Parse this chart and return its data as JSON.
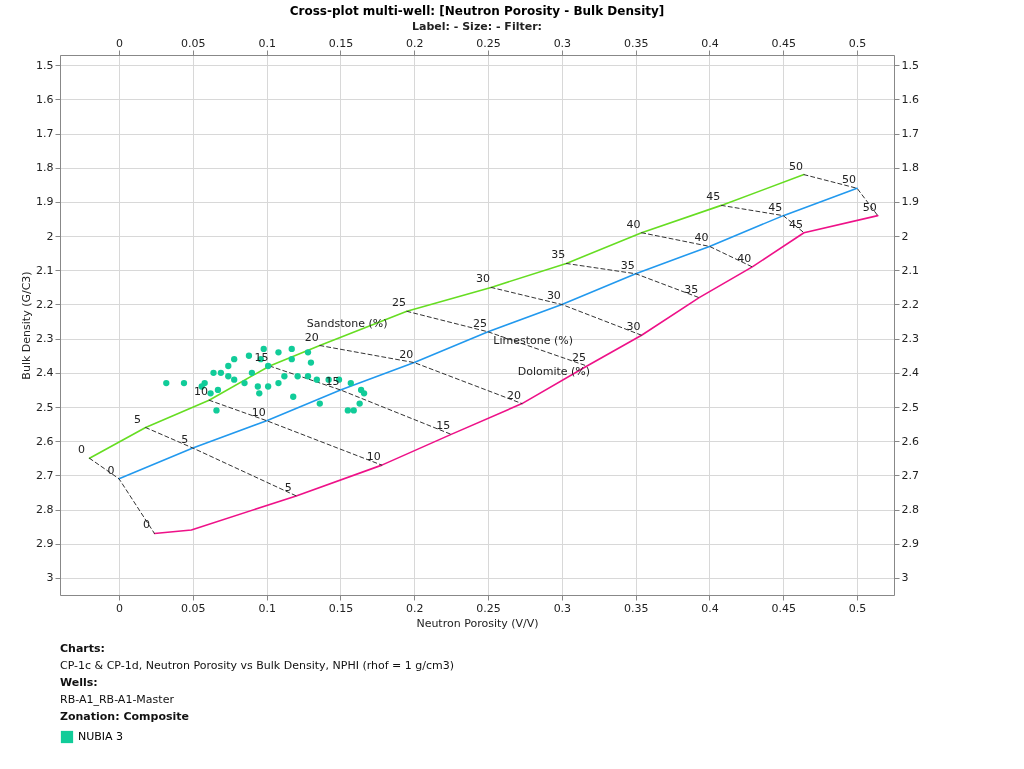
{
  "chart_data": {
    "type": "scatter",
    "title": "Cross-plot multi-well: [Neutron Porosity - Bulk Density]",
    "subtitle": "Label:   -   Size:   -   Filter:",
    "xlabel": "Neutron Porosity (V/V)",
    "ylabel": "Bulk Density (G/C3)",
    "xlim": [
      -0.04,
      0.525
    ],
    "xticks": [
      0,
      0.05,
      0.1,
      0.15,
      0.2,
      0.25,
      0.3,
      0.35,
      0.4,
      0.45,
      0.5
    ],
    "x2lim": [
      -0.04,
      0.525
    ],
    "x2ticks": [
      0,
      0.05,
      0.1,
      0.15,
      0.2,
      0.25,
      0.3,
      0.35,
      0.4,
      0.45,
      0.5
    ],
    "ylim": [
      3.05,
      1.47
    ],
    "yticks": [
      1.5,
      1.6,
      1.7,
      1.8,
      1.9,
      2,
      2.1,
      2.2,
      2.3,
      2.4,
      2.5,
      2.6,
      2.7,
      2.8,
      2.9,
      3
    ],
    "y2lim": [
      3.05,
      1.47
    ],
    "y2ticks": [
      1.5,
      1.6,
      1.7,
      1.8,
      1.9,
      2,
      2.1,
      2.2,
      2.3,
      2.4,
      2.5,
      2.6,
      2.7,
      2.8,
      2.9,
      3
    ],
    "grid": true,
    "legend": "bottom left",
    "series": [
      {
        "type": "line",
        "color": "#66dd22",
        "x": [
          -0.02,
          0.018,
          0.061,
          0.102,
          0.136,
          0.195,
          0.252,
          0.303,
          0.354,
          0.408,
          0.464
        ],
        "values": [
          2.65,
          2.56,
          2.48,
          2.38,
          2.32,
          2.22,
          2.15,
          2.08,
          1.99,
          1.91,
          1.82
        ]
      },
      {
        "type": "line",
        "color": "#2299ee",
        "x": [
          0,
          0.05,
          0.1,
          0.15,
          0.2,
          0.25,
          0.3,
          0.35,
          0.4,
          0.45,
          0.5
        ],
        "values": [
          2.71,
          2.62,
          2.54,
          2.45,
          2.37,
          2.28,
          2.2,
          2.11,
          2.03,
          1.94,
          1.86
        ]
      },
      {
        "type": "line",
        "color": "#ee1188",
        "x": [
          0.024,
          0.049,
          0.12,
          0.178,
          0.225,
          0.273,
          0.317,
          0.354,
          0.393,
          0.429,
          0.464,
          0.514
        ],
        "values": [
          2.87,
          2.86,
          2.76,
          2.67,
          2.58,
          2.49,
          2.38,
          2.29,
          2.18,
          2.09,
          1.99,
          1.94
        ]
      },
      {
        "type": "line",
        "line_style": "dashed",
        "color": "#333333",
        "x": [
          -0.02,
          0,
          0.024
        ],
        "values": [
          2.65,
          2.71,
          2.87
        ]
      },
      {
        "type": "line",
        "line_style": "dashed",
        "color": "#333333",
        "x": [
          0.018,
          0.05,
          0.12
        ],
        "values": [
          2.56,
          2.62,
          2.76
        ]
      },
      {
        "type": "line",
        "line_style": "dashed",
        "color": "#333333",
        "x": [
          0.061,
          0.1,
          0.178
        ],
        "values": [
          2.48,
          2.54,
          2.67
        ]
      },
      {
        "type": "line",
        "line_style": "dashed",
        "color": "#333333",
        "x": [
          0.102,
          0.15,
          0.225
        ],
        "values": [
          2.38,
          2.45,
          2.58
        ]
      },
      {
        "type": "line",
        "line_style": "dashed",
        "color": "#333333",
        "x": [
          0.136,
          0.2,
          0.273
        ],
        "values": [
          2.32,
          2.37,
          2.49
        ]
      },
      {
        "type": "line",
        "line_style": "dashed",
        "color": "#333333",
        "x": [
          0.195,
          0.25,
          0.317
        ],
        "values": [
          2.22,
          2.28,
          2.38
        ]
      },
      {
        "type": "line",
        "line_style": "dashed",
        "color": "#333333",
        "x": [
          0.252,
          0.3,
          0.354
        ],
        "values": [
          2.15,
          2.2,
          2.29
        ]
      },
      {
        "type": "line",
        "line_style": "dashed",
        "color": "#333333",
        "x": [
          0.303,
          0.35,
          0.393
        ],
        "values": [
          2.08,
          2.11,
          2.18
        ]
      },
      {
        "type": "line",
        "line_style": "dashed",
        "color": "#333333",
        "x": [
          0.354,
          0.4,
          0.429
        ],
        "values": [
          1.99,
          2.03,
          2.09
        ]
      },
      {
        "type": "line",
        "line_style": "dashed",
        "color": "#333333",
        "x": [
          0.408,
          0.45,
          0.464
        ],
        "values": [
          1.91,
          1.94,
          1.99
        ]
      },
      {
        "type": "line",
        "line_style": "dashed",
        "color": "#333333",
        "x": [
          0.464,
          0.5,
          0.514
        ],
        "values": [
          1.82,
          1.86,
          1.94
        ]
      },
      {
        "name": "NUBIA 3",
        "color": "#11cc99",
        "marker": "circle",
        "x": [
          0.044,
          0.058,
          0.064,
          0.074,
          0.078,
          0.088,
          0.098,
          0.108,
          0.117,
          0.128,
          0.13,
          0.117,
          0.101,
          0.09,
          0.078,
          0.067,
          0.062,
          0.094,
          0.101,
          0.085,
          0.074,
          0.112,
          0.121,
          0.128,
          0.134,
          0.142,
          0.149,
          0.095,
          0.118,
          0.136,
          0.157,
          0.164,
          0.166,
          0.163,
          0.155,
          0.159,
          0.108,
          0.069,
          0.056,
          0.096,
          0.032,
          0.066
        ],
        "values": [
          2.43,
          2.43,
          2.4,
          2.38,
          2.36,
          2.35,
          2.33,
          2.34,
          2.33,
          2.34,
          2.37,
          2.36,
          2.38,
          2.4,
          2.42,
          2.45,
          2.46,
          2.44,
          2.44,
          2.43,
          2.41,
          2.41,
          2.41,
          2.41,
          2.42,
          2.42,
          2.42,
          2.46,
          2.47,
          2.49,
          2.43,
          2.45,
          2.46,
          2.49,
          2.51,
          2.51,
          2.43,
          2.4,
          2.44,
          2.36,
          2.43,
          2.51
        ]
      }
    ],
    "annotations": [
      {
        "text": "Sandstone (%)",
        "x": 0.16,
        "y": 2.28
      },
      {
        "text": "Limestone (%)",
        "x": 0.286,
        "y": 2.33
      },
      {
        "text": "Dolomite (%)",
        "x": 0.3,
        "y": 2.42
      },
      {
        "text": "0",
        "x": -0.02,
        "y": 2.65
      },
      {
        "text": "5",
        "x": 0.018,
        "y": 2.56
      },
      {
        "text": "10",
        "x": 0.061,
        "y": 2.48
      },
      {
        "text": "15",
        "x": 0.102,
        "y": 2.38
      },
      {
        "text": "20",
        "x": 0.136,
        "y": 2.32
      },
      {
        "text": "25",
        "x": 0.195,
        "y": 2.22
      },
      {
        "text": "30",
        "x": 0.252,
        "y": 2.15
      },
      {
        "text": "35",
        "x": 0.303,
        "y": 2.08
      },
      {
        "text": "40",
        "x": 0.354,
        "y": 1.99
      },
      {
        "text": "45",
        "x": 0.408,
        "y": 1.91
      },
      {
        "text": "50",
        "x": 0.464,
        "y": 1.82
      },
      {
        "text": "0",
        "x": 0,
        "y": 2.71
      },
      {
        "text": "5",
        "x": 0.05,
        "y": 2.62
      },
      {
        "text": "10",
        "x": 0.1,
        "y": 2.54
      },
      {
        "text": "15",
        "x": 0.15,
        "y": 2.45
      },
      {
        "text": "20",
        "x": 0.2,
        "y": 2.37
      },
      {
        "text": "25",
        "x": 0.25,
        "y": 2.28
      },
      {
        "text": "30",
        "x": 0.3,
        "y": 2.2
      },
      {
        "text": "35",
        "x": 0.35,
        "y": 2.11
      },
      {
        "text": "40",
        "x": 0.4,
        "y": 2.03
      },
      {
        "text": "45",
        "x": 0.45,
        "y": 1.94
      },
      {
        "text": "50",
        "x": 0.5,
        "y": 1.86
      },
      {
        "text": "0",
        "x": 0.024,
        "y": 2.87
      },
      {
        "text": "5",
        "x": 0.12,
        "y": 2.76
      },
      {
        "text": "10",
        "x": 0.178,
        "y": 2.67
      },
      {
        "text": "15",
        "x": 0.225,
        "y": 2.58
      },
      {
        "text": "20",
        "x": 0.273,
        "y": 2.49
      },
      {
        "text": "25",
        "x": 0.317,
        "y": 2.38
      },
      {
        "text": "30",
        "x": 0.354,
        "y": 2.29
      },
      {
        "text": "35",
        "x": 0.393,
        "y": 2.18
      },
      {
        "text": "40",
        "x": 0.429,
        "y": 2.09
      },
      {
        "text": "45",
        "x": 0.464,
        "y": 1.99
      },
      {
        "text": "50",
        "x": 0.514,
        "y": 1.94
      },
      "Charts:",
      "CP-1c & CP-1d, Neutron Porosity vs Bulk Density, NPHI (rhof = 1 g/cm3)",
      "Wells:",
      "RB-A1_RB-A1-Master",
      "Zonation: Composite"
    ]
  }
}
